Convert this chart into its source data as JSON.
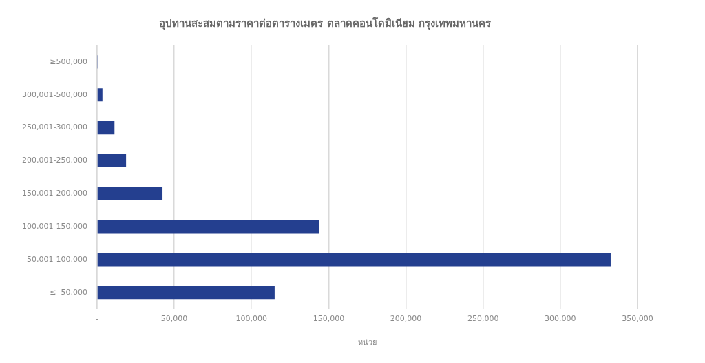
{
  "chart_data": {
    "type": "bar",
    "orientation": "horizontal",
    "title": "อุปทานสะสมตามราคาต่อตารางเมตร ตลาดคอนโดมิเนียม กรุงเทพมหานคร",
    "xlabel": "หน่วย",
    "categories": [
      "≥500,000",
      "300,001-500,000",
      "250,001-300,000",
      "200,001-250,000",
      "150,001-200,000",
      "100,001-150,000",
      "50,001-100,000",
      "≤  50,000"
    ],
    "values": [
      900,
      3500,
      11300,
      18800,
      42400,
      143800,
      332600,
      115000
    ],
    "color": "#243f8f",
    "xlim": [
      0,
      350000
    ],
    "xticks": [
      {
        "value": 0,
        "label": "-"
      },
      {
        "value": 50000,
        "label": "50,000"
      },
      {
        "value": 100000,
        "label": "100,000"
      },
      {
        "value": 150000,
        "label": "150,000"
      },
      {
        "value": 200000,
        "label": "200,000"
      },
      {
        "value": 250000,
        "label": "250,000"
      },
      {
        "value": 300000,
        "label": "300,000"
      },
      {
        "value": 350000,
        "label": "350,000"
      }
    ],
    "grid": "x",
    "legend": false
  }
}
